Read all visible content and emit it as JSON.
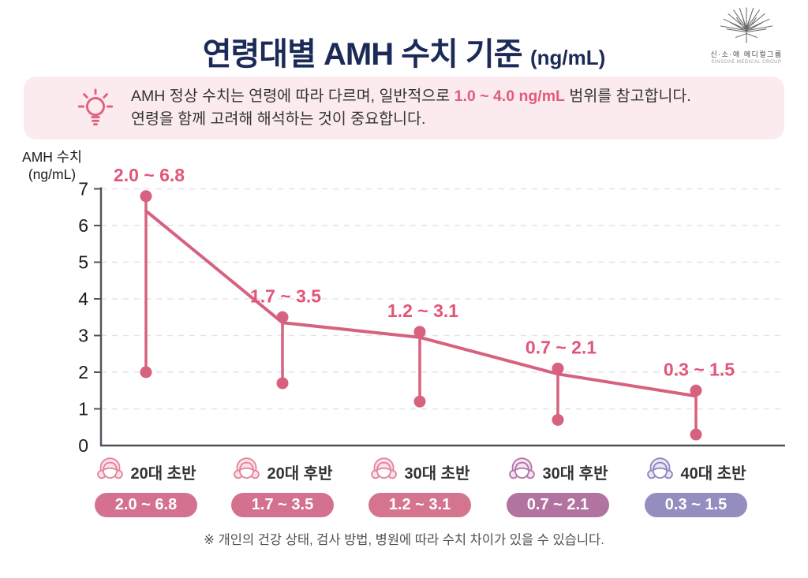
{
  "header": {
    "title": "연령대별 AMH 수치 기준",
    "title_unit": "(ng/mL)",
    "logo": {
      "korean": "신·소·애 메디컬그룹",
      "english": "SINSOAE MEDICAL GROUP"
    }
  },
  "info_box": {
    "line1_prefix": "AMH 정상 수치는 연령에 따라 다르며, 일반적으로 ",
    "line1_highlight": "1.0 ~ 4.0 ng/mL",
    "line1_suffix": " 범위를 참고합니다.",
    "line2": "연령을 함께 고려해 해석하는 것이 중요합니다."
  },
  "chart": {
    "ylabel_line1": "AMH 수치",
    "ylabel_line2": "(ng/mL)"
  },
  "chart_data": {
    "type": "line",
    "title": "연령대별 AMH 수치 기준 (ng/mL)",
    "ylabel": "AMH 수치 (ng/mL)",
    "ylim": [
      0,
      7
    ],
    "yticks": [
      0,
      1,
      2,
      3,
      4,
      5,
      6,
      7
    ],
    "grid": true,
    "categories": [
      "20대 초반",
      "20대 후반",
      "30대 초반",
      "30대 후반",
      "40대 초반"
    ],
    "ranges": [
      {
        "low": 2.0,
        "high": 6.8,
        "label": "2.0 ~ 6.8"
      },
      {
        "low": 1.7,
        "high": 3.5,
        "label": "1.7 ~ 3.5"
      },
      {
        "low": 1.2,
        "high": 3.1,
        "label": "1.2 ~ 3.1"
      },
      {
        "low": 0.7,
        "high": 2.1,
        "label": "0.7 ~ 2.1"
      },
      {
        "low": 0.3,
        "high": 1.5,
        "label": "0.3 ~ 1.5"
      }
    ],
    "trend_line_values": [
      6.4,
      3.35,
      2.95,
      1.95,
      1.35
    ],
    "group_colors": [
      {
        "pill": "#d4718f",
        "icon_main": "#e4849b",
        "icon_light": "#fbe2e8"
      },
      {
        "pill": "#d4718f",
        "icon_main": "#e4849b",
        "icon_light": "#fbe2e8"
      },
      {
        "pill": "#d4748f",
        "icon_main": "#e4849b",
        "icon_light": "#fbe2e8"
      },
      {
        "pill": "#b173a0",
        "icon_main": "#b377a5",
        "icon_light": "#f4e3f0"
      },
      {
        "pill": "#948dc0",
        "icon_main": "#8f88c0",
        "icon_light": "#e9e7f5"
      }
    ],
    "colors": {
      "line": "#d6627f",
      "dot": "#d6627f",
      "range_label": "#e25578",
      "grid": "#e4e4e8",
      "axis": "#51515a",
      "title_navy": "#1c2a57",
      "info_box_bg": "#fcebee",
      "highlight_pink": "#e25a7c"
    }
  },
  "footnote": "※ 개인의 건강 상태, 검사 방법, 병원에 따라 수치 차이가 있을 수 있습니다."
}
